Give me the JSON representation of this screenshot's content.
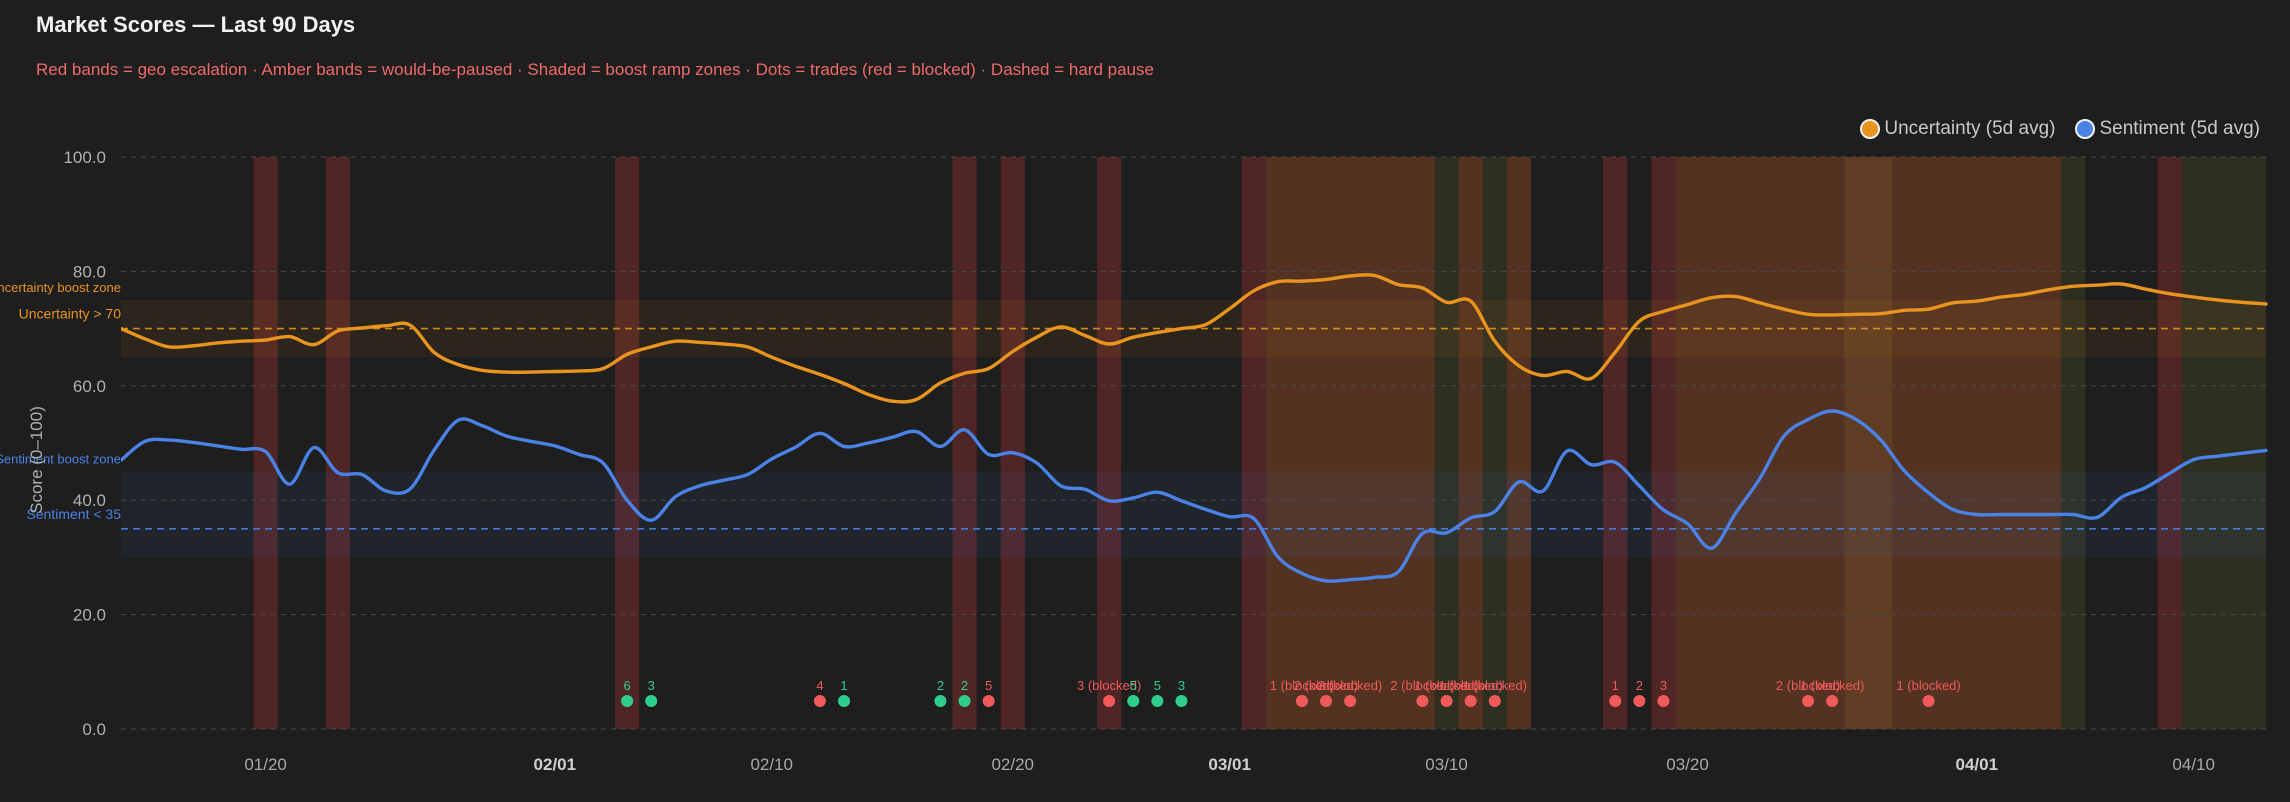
{
  "chart_data": {
    "type": "line",
    "title": "Market Scores — Last 90 Days",
    "subtitle": "Red bands = geo escalation · Amber bands = would-be-paused · Shaded = boost ramp zones · Dots = trades (red = blocked) · Dashed = hard pause",
    "ylabel": "Score (0–100)",
    "xlabel": "",
    "ylim": [
      0,
      100
    ],
    "xlim": [
      0,
      89
    ],
    "grid": true,
    "legend_position": "top-right",
    "y_ticks": [
      {
        "value": 0,
        "label": "0.0"
      },
      {
        "value": 20,
        "label": "20.0"
      },
      {
        "value": 40,
        "label": "40.0"
      },
      {
        "value": 60,
        "label": "60.0"
      },
      {
        "value": 80,
        "label": "80.0"
      },
      {
        "value": 100,
        "label": "100.0"
      }
    ],
    "x_ticks": [
      {
        "day": 6,
        "label": "01/20",
        "bold": false
      },
      {
        "day": 18,
        "label": "02/01",
        "bold": true
      },
      {
        "day": 27,
        "label": "02/10",
        "bold": false
      },
      {
        "day": 37,
        "label": "02/20",
        "bold": false
      },
      {
        "day": 46,
        "label": "03/01",
        "bold": true
      },
      {
        "day": 55,
        "label": "03/10",
        "bold": false
      },
      {
        "day": 65,
        "label": "03/20",
        "bold": false
      },
      {
        "day": 77,
        "label": "04/01",
        "bold": true
      },
      {
        "day": 86,
        "label": "04/10",
        "bold": false
      }
    ],
    "colors": {
      "uncertainty": "#e8941f",
      "sentiment": "#4a82e6",
      "trade_ok": "#2ecf8e",
      "trade_blocked": "#f05a5a",
      "geo_band": "#8b2e2e",
      "paused_band": "#b85a2a",
      "ramp_band": "#5a5a2a"
    },
    "series": [
      {
        "name": "Uncertainty (5d avg)",
        "color": "#e8941f",
        "values": [
          70,
          68.2,
          66.8,
          67,
          67.5,
          67.8,
          68,
          68.6,
          67.2,
          69.6,
          70.1,
          70.5,
          70.6,
          65.8,
          63.7,
          62.7,
          62.4,
          62.4,
          62.5,
          62.6,
          63,
          65.5,
          66.8,
          67.8,
          67.6,
          67.3,
          66.8,
          65,
          63.4,
          62,
          60.4,
          58.5,
          57.3,
          57.6,
          60.5,
          62.2,
          63,
          66,
          68.5,
          70.3,
          68.8,
          67.3,
          68.5,
          69.3,
          70,
          70.7,
          73.5,
          76.6,
          78.2,
          78.3,
          78.6,
          79.2,
          79.3,
          77.7,
          77.1,
          74.6,
          74.8,
          67.8,
          63.5,
          61.8,
          62.5,
          61.3,
          65.9,
          71.3,
          73,
          74.2,
          75.4,
          75.6,
          74.5,
          73.4,
          72.5,
          72.4,
          72.5,
          72.6,
          73.2,
          73.4,
          74.5,
          74.8,
          75.5,
          76,
          76.8,
          77.4,
          77.6,
          77.8,
          76.9,
          76.1,
          75.5,
          75,
          74.6,
          74.3
        ]
      },
      {
        "name": "Sentiment (5d avg)",
        "color": "#4a82e6",
        "values": [
          47,
          50.3,
          50.5,
          50.1,
          49.5,
          48.9,
          48.5,
          42.8,
          49.2,
          44.8,
          44.5,
          41.6,
          42,
          48.8,
          54,
          53,
          51.2,
          50.3,
          49.5,
          48,
          46.5,
          40,
          36.5,
          40.6,
          42.5,
          43.5,
          44.5,
          47.2,
          49.3,
          51.7,
          49.4,
          50,
          51,
          52,
          49.4,
          52.3,
          48,
          48.3,
          46.5,
          42.5,
          41.9,
          39.9,
          40.4,
          41.4,
          39.9,
          38.4,
          37.1,
          36.8,
          30.1,
          27.2,
          25.9,
          26.1,
          26.5,
          27.5,
          34.2,
          34.3,
          36.9,
          38,
          43.2,
          41.6,
          48.6,
          46.2,
          46.6,
          42.5,
          38.3,
          35.9,
          31.6,
          37.8,
          43.8,
          51.2,
          54.1,
          55.6,
          54.1,
          50.6,
          45.1,
          41.3,
          38.4,
          37.5,
          37.5,
          37.5,
          37.5,
          37.5,
          37,
          40.5,
          42.2,
          44.7,
          47.1,
          47.7,
          48.2,
          48.7
        ]
      }
    ],
    "pause_thresholds": [
      {
        "value": 70,
        "label": "Uncertainty > 70",
        "color": "#e8941f"
      },
      {
        "value": 35,
        "label": "Sentiment < 35",
        "color": "#4a82e6"
      }
    ],
    "boost_zones": [
      {
        "from": 65,
        "to": 75,
        "label": "Uncertainty boost zone",
        "color": "#e8941f"
      },
      {
        "from": 30,
        "to": 45,
        "label": "Sentiment boost zone",
        "color": "#4a82e6"
      }
    ],
    "geo_escalation_bands": [
      [
        5.5,
        6.5
      ],
      [
        8.5,
        9.5
      ],
      [
        20.5,
        21.5
      ],
      [
        34.5,
        35.5
      ],
      [
        36.5,
        37.5
      ],
      [
        40.5,
        41.5
      ],
      [
        46.5,
        47.5
      ],
      [
        61.5,
        62.5
      ],
      [
        63.5,
        64.5
      ],
      [
        84.5,
        85.5
      ]
    ],
    "paused_bands": [
      [
        47.5,
        54.5
      ],
      [
        55.5,
        56.5
      ],
      [
        57.5,
        58.5
      ],
      [
        64.5,
        71.5
      ],
      [
        71.5,
        80.5
      ]
    ],
    "ramp_bands": [
      [
        54.5,
        55.5
      ],
      [
        56.5,
        57.5
      ],
      [
        71.5,
        73.5
      ],
      [
        80.5,
        81.5
      ],
      [
        85.5,
        89
      ]
    ],
    "trades": [
      {
        "day": 21,
        "label": "6",
        "blocked": false
      },
      {
        "day": 22,
        "label": "3",
        "blocked": false
      },
      {
        "day": 29,
        "label": "4",
        "blocked": true
      },
      {
        "day": 30,
        "label": "1",
        "blocked": false
      },
      {
        "day": 34,
        "label": "2",
        "blocked": false
      },
      {
        "day": 35,
        "label": "2",
        "blocked": false
      },
      {
        "day": 36,
        "label": "5",
        "blocked": true
      },
      {
        "day": 41,
        "label": "3 (blocked)",
        "blocked": true
      },
      {
        "day": 42,
        "label": "5",
        "blocked": false
      },
      {
        "day": 43,
        "label": "5",
        "blocked": false
      },
      {
        "day": 44,
        "label": "3",
        "blocked": false
      },
      {
        "day": 49,
        "label": "1 (blocked)",
        "blocked": true
      },
      {
        "day": 50,
        "label": "2 (blocked)",
        "blocked": true
      },
      {
        "day": 51,
        "label": "2 (blocked)",
        "blocked": true
      },
      {
        "day": 54,
        "label": "2 (blocked)",
        "blocked": true
      },
      {
        "day": 55,
        "label": "1 (blocked)",
        "blocked": true
      },
      {
        "day": 56,
        "label": "1 (blocked)",
        "blocked": true
      },
      {
        "day": 57,
        "label": "1 (blocked)",
        "blocked": true
      },
      {
        "day": 62,
        "label": "1",
        "blocked": true
      },
      {
        "day": 63,
        "label": "2",
        "blocked": true
      },
      {
        "day": 64,
        "label": "3",
        "blocked": true
      },
      {
        "day": 70,
        "label": "2 (blocked)",
        "blocked": true
      },
      {
        "day": 71,
        "label": "1 (blocked)",
        "blocked": true
      },
      {
        "day": 75,
        "label": "1 (blocked)",
        "blocked": true
      }
    ]
  }
}
